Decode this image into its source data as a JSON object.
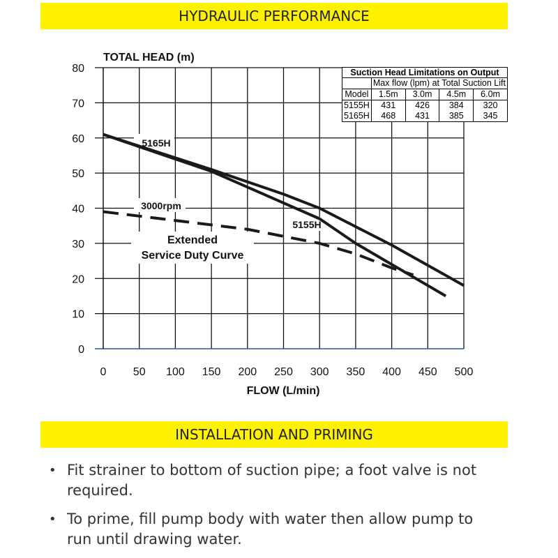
{
  "headers": {
    "hydraulic": "HYDRAULIC PERFORMANCE",
    "installation": "INSTALLATION AND PRIMING"
  },
  "chart_data": {
    "type": "line",
    "ylabel": "TOTAL HEAD (m)",
    "xlabel": "FLOW (L/min)",
    "xlim": [
      0,
      500
    ],
    "ylim": [
      0,
      80
    ],
    "xticks": [
      0,
      50,
      100,
      150,
      200,
      250,
      300,
      350,
      400,
      450,
      500
    ],
    "yticks": [
      0,
      10,
      20,
      30,
      40,
      50,
      60,
      70,
      80
    ],
    "grid": true,
    "series": [
      {
        "name": "5165H",
        "style": "solid",
        "x": [
          0,
          150,
          250,
          300,
          400,
          500
        ],
        "y": [
          61,
          51,
          44,
          40,
          29.5,
          18
        ]
      },
      {
        "name": "5155H",
        "style": "solid",
        "x": [
          0,
          150,
          200,
          300,
          350,
          400,
          475
        ],
        "y": [
          61,
          50.5,
          46,
          37,
          30,
          24,
          15
        ]
      },
      {
        "name": "3000rpm",
        "style": "dashed",
        "x": [
          0,
          100,
          200,
          300,
          350,
          400,
          430
        ],
        "y": [
          39,
          36.5,
          34,
          30,
          27,
          23,
          21
        ]
      }
    ],
    "annotations": [
      "Extended",
      "Service Duty Curve"
    ]
  },
  "suction_table": {
    "title": "Suction Head Limitations on Output",
    "subtitle": "Max flow (lpm) at Total Suction Lift",
    "columns": [
      "Model",
      "1.5m",
      "3.0m",
      "4.5m",
      "6.0m"
    ],
    "rows": [
      [
        "5155H",
        "431",
        "426",
        "384",
        "320"
      ],
      [
        "5165H",
        "468",
        "431",
        "385",
        "345"
      ]
    ]
  },
  "bullets": [
    "Fit strainer to bottom of suction pipe; a foot valve is not required.",
    "To prime, fill pump body with water then allow pump to run until drawing water."
  ],
  "colors": {
    "band": "#fff200",
    "line": "#1a1a1a"
  }
}
